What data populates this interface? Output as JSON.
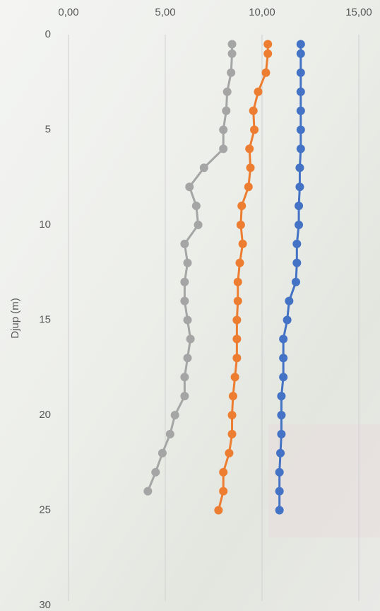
{
  "chart_data": {
    "type": "line",
    "y_label": "Djup (m)",
    "y": [
      0.5,
      1,
      2,
      3,
      4,
      5,
      6,
      7,
      8,
      9,
      10,
      11,
      12,
      13,
      14,
      15,
      16,
      17,
      18,
      19,
      20,
      21,
      22,
      23,
      24,
      25
    ],
    "ylim": [
      0,
      30
    ],
    "yticks": [
      0,
      5,
      10,
      15,
      20,
      25,
      30
    ],
    "y_inverted": true,
    "xlim": [
      0,
      15
    ],
    "xticks": [
      {
        "value": 0,
        "label": "0,00"
      },
      {
        "value": 5,
        "label": "5,00"
      },
      {
        "value": 10,
        "label": "10,00"
      },
      {
        "value": 15,
        "label": "15,00"
      }
    ],
    "x_axis_position": "top",
    "grid": true,
    "series": [
      {
        "color": "#4472c4",
        "values": [
          12.0,
          12.0,
          12.0,
          12.0,
          12.0,
          12.0,
          12.0,
          11.95,
          11.95,
          11.9,
          11.9,
          11.8,
          11.8,
          11.75,
          11.4,
          11.3,
          11.1,
          11.1,
          11.1,
          11.0,
          11.0,
          11.0,
          10.95,
          10.9,
          10.9,
          10.9
        ]
      },
      {
        "color": "#ed7d31",
        "values": [
          10.3,
          10.3,
          10.2,
          9.8,
          9.55,
          9.6,
          9.35,
          9.4,
          9.3,
          8.95,
          8.9,
          9.0,
          8.85,
          8.75,
          8.75,
          8.7,
          8.7,
          8.7,
          8.6,
          8.5,
          8.45,
          8.45,
          8.3,
          8.0,
          8.0,
          7.75
        ]
      },
      {
        "color": "#a5a5a5",
        "values": [
          8.45,
          8.45,
          8.4,
          8.2,
          8.15,
          8.0,
          8.0,
          7.0,
          6.25,
          6.6,
          6.7,
          6.0,
          6.15,
          6.0,
          6.0,
          6.15,
          6.3,
          6.15,
          6.0,
          6.0,
          5.5,
          5.25,
          4.85,
          4.5,
          4.1,
          null
        ]
      }
    ]
  }
}
